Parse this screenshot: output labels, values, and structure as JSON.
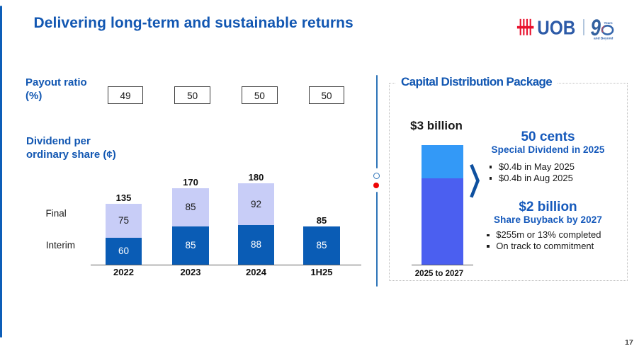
{
  "header": {
    "title": "Delivering long-term and sustainable returns",
    "logo": {
      "brand": "UOB",
      "anniversary_number": "90",
      "anniversary_years": "Years",
      "anniversary_tagline": "and Beyond"
    }
  },
  "payout": {
    "label_line1": "Payout ratio",
    "label_line2": "(%)",
    "values": [
      "49",
      "50",
      "50",
      "50"
    ]
  },
  "dividend": {
    "label_line1": "Dividend per",
    "label_line2": "ordinary share (¢)",
    "final_label": "Final",
    "interim_label": "Interim"
  },
  "chart_data": [
    {
      "type": "bar",
      "subtype": "stacked",
      "title": "Dividend per ordinary share (¢)",
      "categories": [
        "2022",
        "2023",
        "2024",
        "1H25"
      ],
      "series": [
        {
          "name": "Interim",
          "values": [
            60,
            85,
            88,
            85
          ]
        },
        {
          "name": "Final",
          "values": [
            75,
            85,
            92,
            null
          ]
        }
      ],
      "totals": [
        135,
        170,
        180,
        85
      ],
      "payout_ratio_percent": [
        49,
        50,
        50,
        50
      ],
      "legend_position": "left",
      "grid": false
    },
    {
      "type": "bar",
      "subtype": "stacked",
      "title": "Capital Distribution Package",
      "categories": [
        "2025 to 2027"
      ],
      "series": [
        {
          "name": "Special Dividend",
          "values": [
            1
          ]
        },
        {
          "name": "Share Buyback",
          "values": [
            2
          ]
        }
      ],
      "total_label": "$3 billion",
      "unit": "billions SGD",
      "grid": false
    }
  ],
  "capital": {
    "box_title": "Capital Distribution Package",
    "bar_total_label": "$3 billion",
    "bar_xlabel": "2025 to 2027",
    "dividend_block": {
      "headline": "50 cents",
      "subhead": "Special Dividend in 2025",
      "bullets": [
        "$0.4b in May 2025",
        "$0.4b in Aug 2025"
      ]
    },
    "buyback_block": {
      "headline": "$2 billion",
      "subhead": "Share Buyback by 2027",
      "bullets": [
        "$255m or 13% completed",
        "On track to commitment"
      ]
    }
  },
  "footer": {
    "page_number": "17"
  },
  "colors": {
    "brand_blue": "#1257b2",
    "accent_line_blue": "#0d5eb8",
    "bar_dark_blue": "#0a5cb5",
    "bar_lavender": "#c8cdf7",
    "cap_bar_azure": "#3399f7",
    "cap_bar_indigo": "#4b5ff0",
    "divider_steel_blue": "#2e74b8",
    "dot_red": "#ee0505",
    "logo_red": "#e8112d",
    "logo_blue": "#2d5ba8"
  }
}
